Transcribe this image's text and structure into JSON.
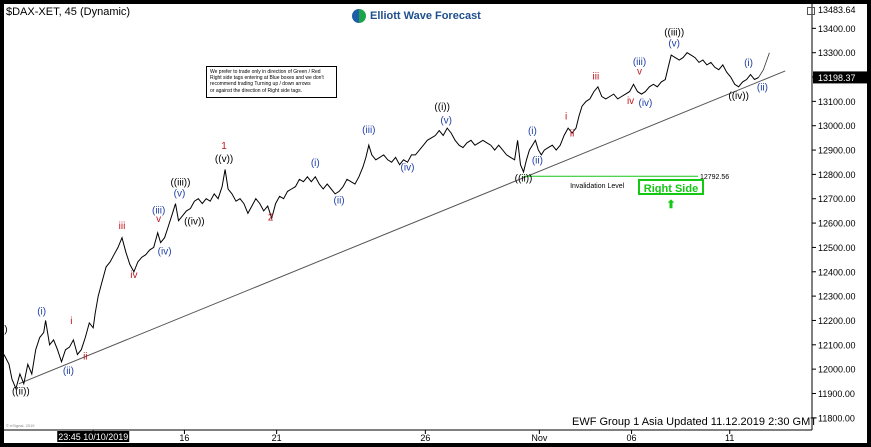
{
  "header": {
    "ticker": "$DAX-XET, 45 (Dynamic)",
    "brand": "Elliott Wave Forecast",
    "notice_lines": [
      "We prefer to trade only in direction of Green / Red",
      "Right side tags entering at Blue boxes and we don't",
      "recommend trading Turning up / down arrows",
      "or against the direction of Right side tags."
    ]
  },
  "footer": {
    "updated": "EWF Group 1 Asia Updated 11.12.2019 2:30 GMT",
    "copyright": "© eSignal, 2019"
  },
  "badges": {
    "right_side": "Right Side",
    "invalidation_label": "Invalidation Level",
    "invalidation_value": "12792.56"
  },
  "colors": {
    "background": "#ffffff",
    "price_line": "#000000",
    "blue_labels": "#1f3fa8",
    "red_labels": "#c0141e",
    "black_labels": "#000000",
    "invalidation_line": "#14c814",
    "price_tag": "#000000"
  },
  "chart_data": {
    "type": "line",
    "title": "$DAX-XET, 45 (Dynamic)",
    "ylim": [
      11750,
      13500
    ],
    "xlim": [
      0,
      815
    ],
    "y_ticks": [
      11800,
      11900,
      12000,
      12100,
      12200,
      12300,
      12400,
      12500,
      12600,
      12700,
      12800,
      12900,
      13000,
      13100,
      13200,
      13300,
      13400
    ],
    "x_ticks": [
      {
        "label": "23:45 10/10/2019",
        "pos": 90
      },
      {
        "label": "16",
        "pos": 182
      },
      {
        "label": "21",
        "pos": 275
      },
      {
        "label": "26",
        "pos": 425
      },
      {
        "label": "Nov",
        "pos": 540
      },
      {
        "label": "06",
        "pos": 633
      },
      {
        "label": "11",
        "pos": 732
      }
    ],
    "current_price": {
      "label": "13198.37",
      "value": 13198.37
    },
    "top_price": {
      "label": "13483.64",
      "value": 13483.64
    },
    "series": [
      {
        "points": [
          [
            0,
            12060
          ],
          [
            5,
            12020
          ],
          [
            8,
            11960
          ],
          [
            12,
            11920
          ],
          [
            16,
            11980
          ],
          [
            20,
            11940
          ],
          [
            24,
            12020
          ],
          [
            28,
            11980
          ],
          [
            32,
            12080
          ],
          [
            36,
            12130
          ],
          [
            40,
            12150
          ],
          [
            42,
            12200
          ],
          [
            46,
            12100
          ],
          [
            50,
            12120
          ],
          [
            54,
            12080
          ],
          [
            58,
            12030
          ],
          [
            62,
            12080
          ],
          [
            66,
            12090
          ],
          [
            70,
            12120
          ],
          [
            74,
            12060
          ],
          [
            78,
            12080
          ],
          [
            82,
            12130
          ],
          [
            86,
            12190
          ],
          [
            90,
            12170
          ],
          [
            92,
            12230
          ],
          [
            95,
            12300
          ],
          [
            99,
            12360
          ],
          [
            103,
            12420
          ],
          [
            107,
            12440
          ],
          [
            111,
            12470
          ],
          [
            115,
            12500
          ],
          [
            119,
            12540
          ],
          [
            123,
            12480
          ],
          [
            127,
            12430
          ],
          [
            131,
            12400
          ],
          [
            135,
            12440
          ],
          [
            139,
            12460
          ],
          [
            143,
            12470
          ],
          [
            147,
            12490
          ],
          [
            151,
            12500
          ],
          [
            155,
            12560
          ],
          [
            158,
            12520
          ],
          [
            162,
            12540
          ],
          [
            166,
            12590
          ],
          [
            170,
            12640
          ],
          [
            173,
            12680
          ],
          [
            176,
            12610
          ],
          [
            180,
            12630
          ],
          [
            184,
            12650
          ],
          [
            188,
            12660
          ],
          [
            192,
            12690
          ],
          [
            196,
            12700
          ],
          [
            200,
            12680
          ],
          [
            204,
            12700
          ],
          [
            208,
            12690
          ],
          [
            212,
            12720
          ],
          [
            216,
            12700
          ],
          [
            220,
            12750
          ],
          [
            223,
            12820
          ],
          [
            226,
            12740
          ],
          [
            230,
            12720
          ],
          [
            234,
            12690
          ],
          [
            238,
            12700
          ],
          [
            242,
            12680
          ],
          [
            246,
            12640
          ],
          [
            250,
            12670
          ],
          [
            254,
            12700
          ],
          [
            258,
            12680
          ],
          [
            262,
            12650
          ],
          [
            266,
            12670
          ],
          [
            270,
            12620
          ],
          [
            274,
            12680
          ],
          [
            278,
            12710
          ],
          [
            282,
            12700
          ],
          [
            286,
            12730
          ],
          [
            290,
            12740
          ],
          [
            294,
            12750
          ],
          [
            298,
            12780
          ],
          [
            302,
            12770
          ],
          [
            306,
            12790
          ],
          [
            310,
            12770
          ],
          [
            314,
            12790
          ],
          [
            318,
            12760
          ],
          [
            322,
            12740
          ],
          [
            326,
            12760
          ],
          [
            330,
            12740
          ],
          [
            334,
            12720
          ],
          [
            338,
            12730
          ],
          [
            342,
            12750
          ],
          [
            346,
            12780
          ],
          [
            350,
            12770
          ],
          [
            354,
            12760
          ],
          [
            358,
            12790
          ],
          [
            362,
            12830
          ],
          [
            365,
            12870
          ],
          [
            368,
            12920
          ],
          [
            371,
            12880
          ],
          [
            375,
            12860
          ],
          [
            379,
            12870
          ],
          [
            383,
            12880
          ],
          [
            387,
            12860
          ],
          [
            391,
            12850
          ],
          [
            395,
            12870
          ],
          [
            399,
            12840
          ],
          [
            403,
            12860
          ],
          [
            407,
            12850
          ],
          [
            411,
            12880
          ],
          [
            415,
            12880
          ],
          [
            419,
            12900
          ],
          [
            423,
            12920
          ],
          [
            427,
            12940
          ],
          [
            431,
            12950
          ],
          [
            435,
            12960
          ],
          [
            439,
            12980
          ],
          [
            443,
            12960
          ],
          [
            447,
            12990
          ],
          [
            451,
            12970
          ],
          [
            455,
            12940
          ],
          [
            459,
            12920
          ],
          [
            463,
            12910
          ],
          [
            467,
            12930
          ],
          [
            471,
            12940
          ],
          [
            475,
            12920
          ],
          [
            479,
            12930
          ],
          [
            483,
            12940
          ],
          [
            487,
            12930
          ],
          [
            491,
            12920
          ],
          [
            495,
            12900
          ],
          [
            499,
            12920
          ],
          [
            503,
            12900
          ],
          [
            507,
            12880
          ],
          [
            511,
            12870
          ],
          [
            515,
            12860
          ],
          [
            518,
            12940
          ],
          [
            521,
            12840
          ],
          [
            524,
            12810
          ],
          [
            527,
            12860
          ],
          [
            530,
            12900
          ],
          [
            533,
            12920
          ],
          [
            536,
            12940
          ],
          [
            539,
            12900
          ],
          [
            542,
            12880
          ],
          [
            545,
            12900
          ],
          [
            549,
            12910
          ],
          [
            553,
            12920
          ],
          [
            557,
            12900
          ],
          [
            561,
            12920
          ],
          [
            565,
            12960
          ],
          [
            569,
            12990
          ],
          [
            573,
            12970
          ],
          [
            577,
            12990
          ],
          [
            580,
            13040
          ],
          [
            583,
            13080
          ],
          [
            587,
            13100
          ],
          [
            591,
            13110
          ],
          [
            595,
            13140
          ],
          [
            599,
            13160
          ],
          [
            603,
            13120
          ],
          [
            607,
            13110
          ],
          [
            611,
            13120
          ],
          [
            615,
            13130
          ],
          [
            619,
            13110
          ],
          [
            623,
            13120
          ],
          [
            627,
            13130
          ],
          [
            631,
            13140
          ],
          [
            635,
            13170
          ],
          [
            639,
            13140
          ],
          [
            643,
            13130
          ],
          [
            647,
            13140
          ],
          [
            651,
            13160
          ],
          [
            655,
            13170
          ],
          [
            659,
            13160
          ],
          [
            663,
            13180
          ],
          [
            667,
            13190
          ],
          [
            670,
            13240
          ],
          [
            673,
            13290
          ],
          [
            677,
            13280
          ],
          [
            681,
            13270
          ],
          [
            685,
            13280
          ],
          [
            689,
            13300
          ],
          [
            693,
            13290
          ],
          [
            697,
            13280
          ],
          [
            701,
            13260
          ],
          [
            705,
            13270
          ],
          [
            709,
            13250
          ],
          [
            713,
            13260
          ],
          [
            717,
            13240
          ],
          [
            721,
            13230
          ],
          [
            725,
            13250
          ],
          [
            729,
            13220
          ],
          [
            733,
            13200
          ],
          [
            737,
            13170
          ],
          [
            741,
            13160
          ],
          [
            745,
            13180
          ],
          [
            749,
            13190
          ],
          [
            753,
            13210
          ],
          [
            757,
            13190
          ],
          [
            761,
            13198
          ]
        ]
      }
    ],
    "projection": [
      [
        761,
        13198
      ],
      [
        766,
        13230
      ],
      [
        772,
        13300
      ]
    ],
    "trendline": {
      "from": [
        15,
        11940
      ],
      "to": [
        788,
        13225
      ]
    },
    "invalidation": {
      "value": 12792.56,
      "from": 524,
      "to": 700
    },
    "wave_labels": [
      {
        "text": ")",
        "x": 2,
        "y": 12150,
        "color": "black"
      },
      {
        "text": "((ii))",
        "x": 17,
        "y": 11895,
        "color": "black"
      },
      {
        "text": "(i)",
        "x": 38,
        "y": 12225,
        "color": "blue"
      },
      {
        "text": "i",
        "x": 68,
        "y": 12185,
        "color": "red"
      },
      {
        "text": "(ii)",
        "x": 65,
        "y": 11980,
        "color": "blue"
      },
      {
        "text": "ii",
        "x": 82,
        "y": 12040,
        "color": "red"
      },
      {
        "text": "iii",
        "x": 119,
        "y": 12575,
        "color": "red"
      },
      {
        "text": "iv",
        "x": 131,
        "y": 12375,
        "color": "red"
      },
      {
        "text": "(iii)",
        "x": 156,
        "y": 12640,
        "color": "blue"
      },
      {
        "text": "v",
        "x": 156,
        "y": 12605,
        "color": "red"
      },
      {
        "text": "(iv)",
        "x": 162,
        "y": 12470,
        "color": "blue"
      },
      {
        "text": "((iii))",
        "x": 178,
        "y": 12755,
        "color": "black"
      },
      {
        "text": "(v)",
        "x": 177,
        "y": 12710,
        "color": "blue"
      },
      {
        "text": "((iv))",
        "x": 192,
        "y": 12595,
        "color": "black"
      },
      {
        "text": "1",
        "x": 222,
        "y": 12905,
        "color": "red"
      },
      {
        "text": "((v))",
        "x": 222,
        "y": 12850,
        "color": "black"
      },
      {
        "text": "2",
        "x": 269,
        "y": 12610,
        "color": "red"
      },
      {
        "text": "(i)",
        "x": 314,
        "y": 12835,
        "color": "blue"
      },
      {
        "text": "(ii)",
        "x": 338,
        "y": 12680,
        "color": "blue"
      },
      {
        "text": "(iii)",
        "x": 368,
        "y": 12970,
        "color": "blue"
      },
      {
        "text": "(iv)",
        "x": 407,
        "y": 12815,
        "color": "blue"
      },
      {
        "text": "((i))",
        "x": 442,
        "y": 13065,
        "color": "black"
      },
      {
        "text": "(v)",
        "x": 446,
        "y": 13010,
        "color": "blue"
      },
      {
        "text": "(i)",
        "x": 533,
        "y": 12965,
        "color": "blue"
      },
      {
        "text": "(ii)",
        "x": 538,
        "y": 12845,
        "color": "blue"
      },
      {
        "text": "((ii))",
        "x": 524,
        "y": 12770,
        "color": "black"
      },
      {
        "text": "i",
        "x": 567,
        "y": 13025,
        "color": "red"
      },
      {
        "text": "ii",
        "x": 573,
        "y": 12955,
        "color": "red"
      },
      {
        "text": "iii",
        "x": 597,
        "y": 13190,
        "color": "red"
      },
      {
        "text": "iv",
        "x": 632,
        "y": 13090,
        "color": "red"
      },
      {
        "text": "(iii)",
        "x": 641,
        "y": 13250,
        "color": "blue"
      },
      {
        "text": "v",
        "x": 641,
        "y": 13210,
        "color": "red"
      },
      {
        "text": "(iv)",
        "x": 647,
        "y": 13080,
        "color": "blue"
      },
      {
        "text": "((iii))",
        "x": 676,
        "y": 13370,
        "color": "black"
      },
      {
        "text": "(v)",
        "x": 676,
        "y": 13325,
        "color": "blue"
      },
      {
        "text": "((iv))",
        "x": 741,
        "y": 13110,
        "color": "black"
      },
      {
        "text": "(i)",
        "x": 751,
        "y": 13245,
        "color": "blue"
      },
      {
        "text": "(ii)",
        "x": 765,
        "y": 13145,
        "color": "blue"
      }
    ]
  }
}
